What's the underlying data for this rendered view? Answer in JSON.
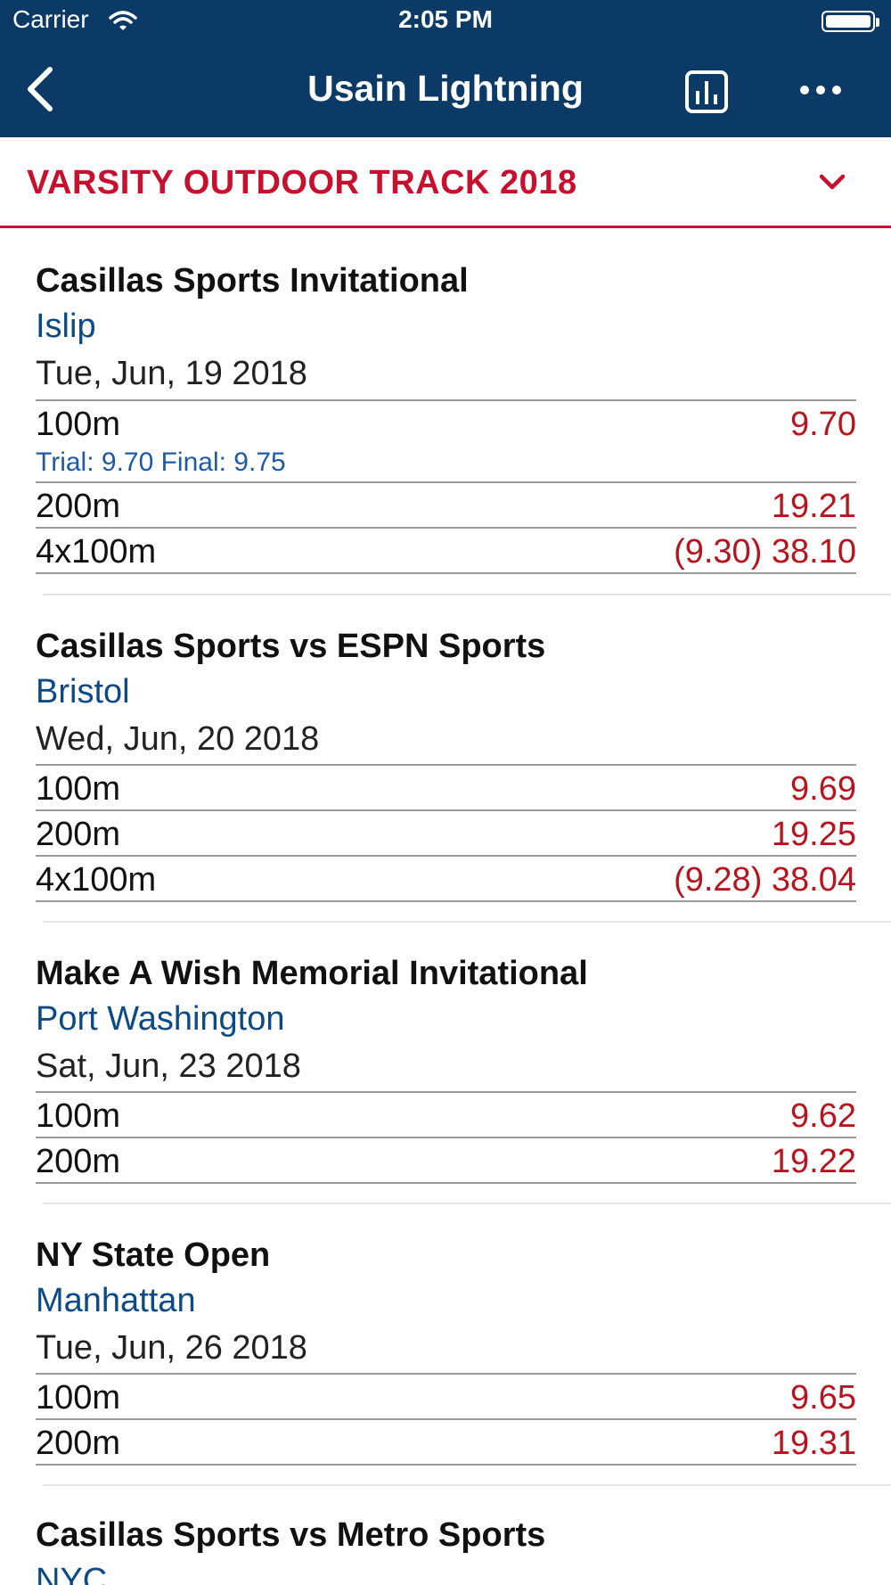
{
  "status_bar": {
    "carrier": "Carrier",
    "time": "2:05 PM"
  },
  "nav": {
    "title": "Usain Lightning",
    "back_icon": "chevron-left-icon",
    "chart_icon": "bar-chart-icon",
    "more_icon": "more-horizontal-icon"
  },
  "season": {
    "label": "VARSITY OUTDOOR TRACK 2018",
    "icon": "chevron-down-icon"
  },
  "colors": {
    "header": "#0b3a66",
    "accent": "#c8102e",
    "result": "#b8141f",
    "location": "#0b4a86"
  },
  "meets": [
    {
      "name": "Casillas Sports Invitational",
      "location": "Islip",
      "date": "Tue, Jun, 19 2018",
      "events": [
        {
          "event": "100m",
          "result": "9.70",
          "detail": "Trial: 9.70  Final: 9.75"
        },
        {
          "event": "200m",
          "result": "19.21"
        },
        {
          "event": "4x100m",
          "result": "(9.30) 38.10"
        }
      ]
    },
    {
      "name": "Casillas Sports vs ESPN Sports",
      "location": "Bristol",
      "date": "Wed, Jun, 20 2018",
      "events": [
        {
          "event": "100m",
          "result": "9.69"
        },
        {
          "event": "200m",
          "result": "19.25"
        },
        {
          "event": "4x100m",
          "result": "(9.28) 38.04"
        }
      ]
    },
    {
      "name": "Make A Wish Memorial Invitational",
      "location": "Port Washington",
      "date": "Sat, Jun, 23 2018",
      "events": [
        {
          "event": "100m",
          "result": "9.62"
        },
        {
          "event": "200m",
          "result": "19.22"
        }
      ]
    },
    {
      "name": "NY State Open",
      "location": "Manhattan",
      "date": "Tue, Jun, 26 2018",
      "events": [
        {
          "event": "100m",
          "result": "9.65"
        },
        {
          "event": "200m",
          "result": "19.31"
        }
      ]
    },
    {
      "name": "Casillas Sports vs Metro Sports",
      "location": "NYC",
      "date": "",
      "events": []
    }
  ]
}
